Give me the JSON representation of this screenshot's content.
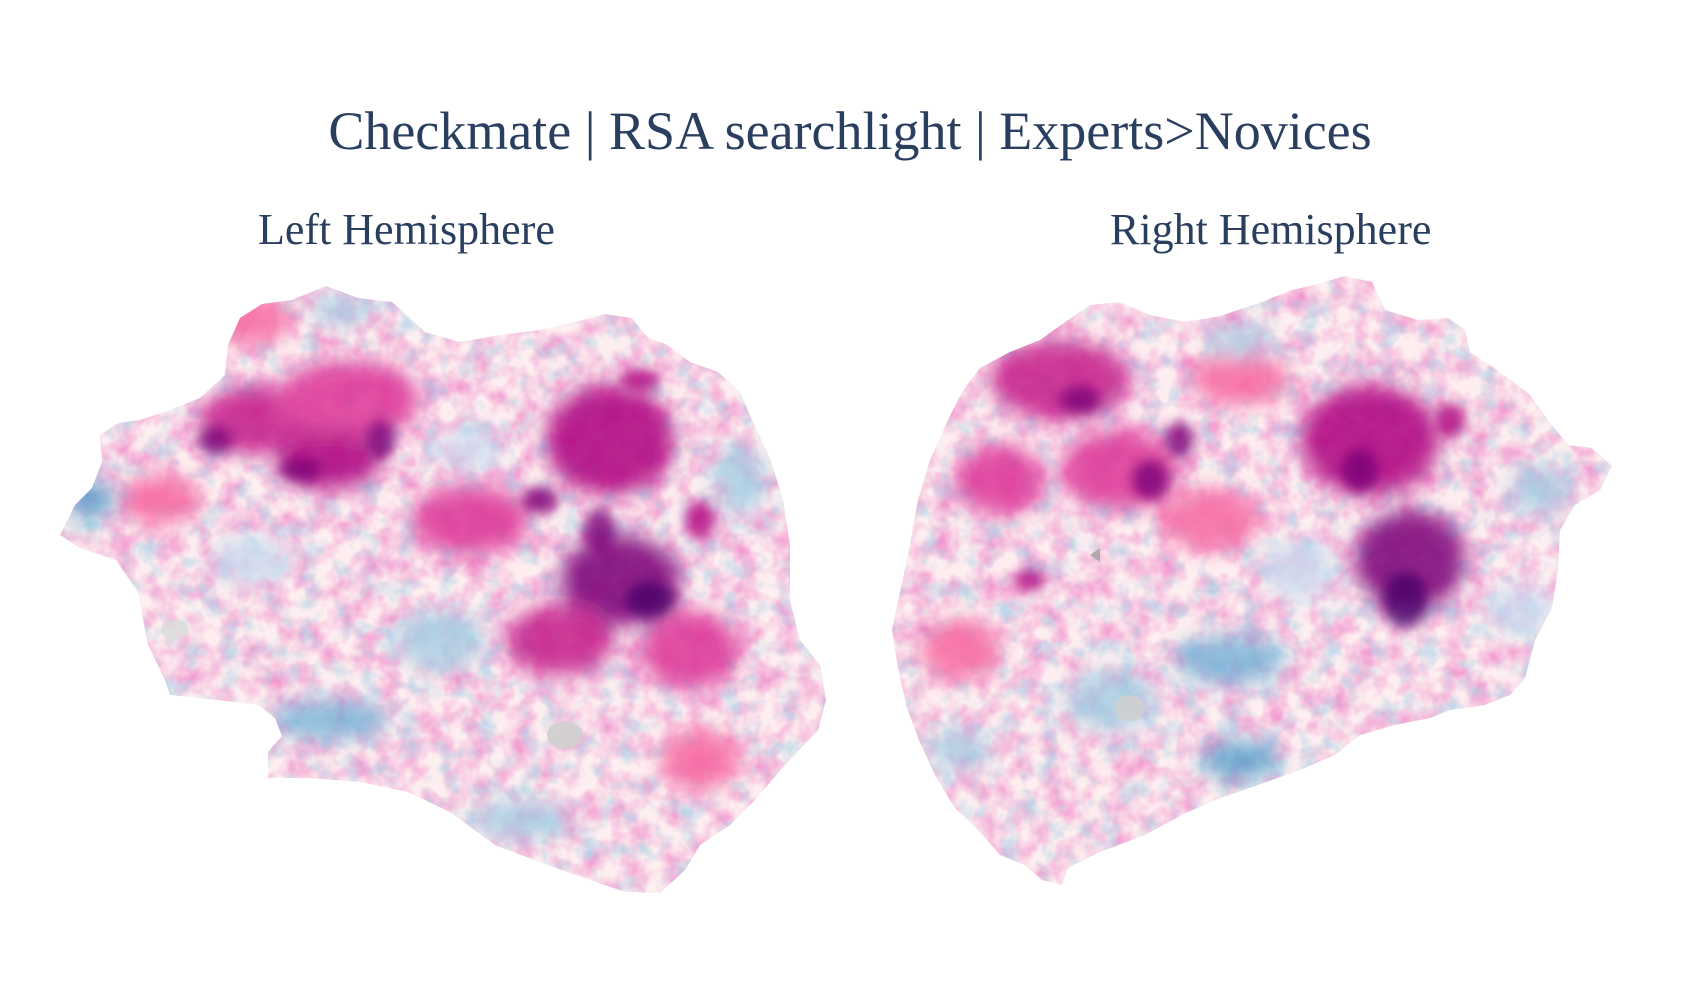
{
  "figure": {
    "title": "Checkmate | RSA searchlight | Experts>Novices",
    "left_panel": {
      "label": "Left Hemisphere"
    },
    "right_panel": {
      "label": "Right Hemisphere"
    }
  },
  "colors": {
    "text": "#2a3f5f",
    "positive_strong": "#7a0177",
    "positive_mid": "#dd3497",
    "positive_light": "#f7b6d0",
    "neutral": "#fdf3f3",
    "negative_light": "#c6dbef",
    "negative_mid": "#4a9cc9",
    "medial_wall": "#d9d9d9"
  },
  "colormap": "diverging blue-white-pink"
}
